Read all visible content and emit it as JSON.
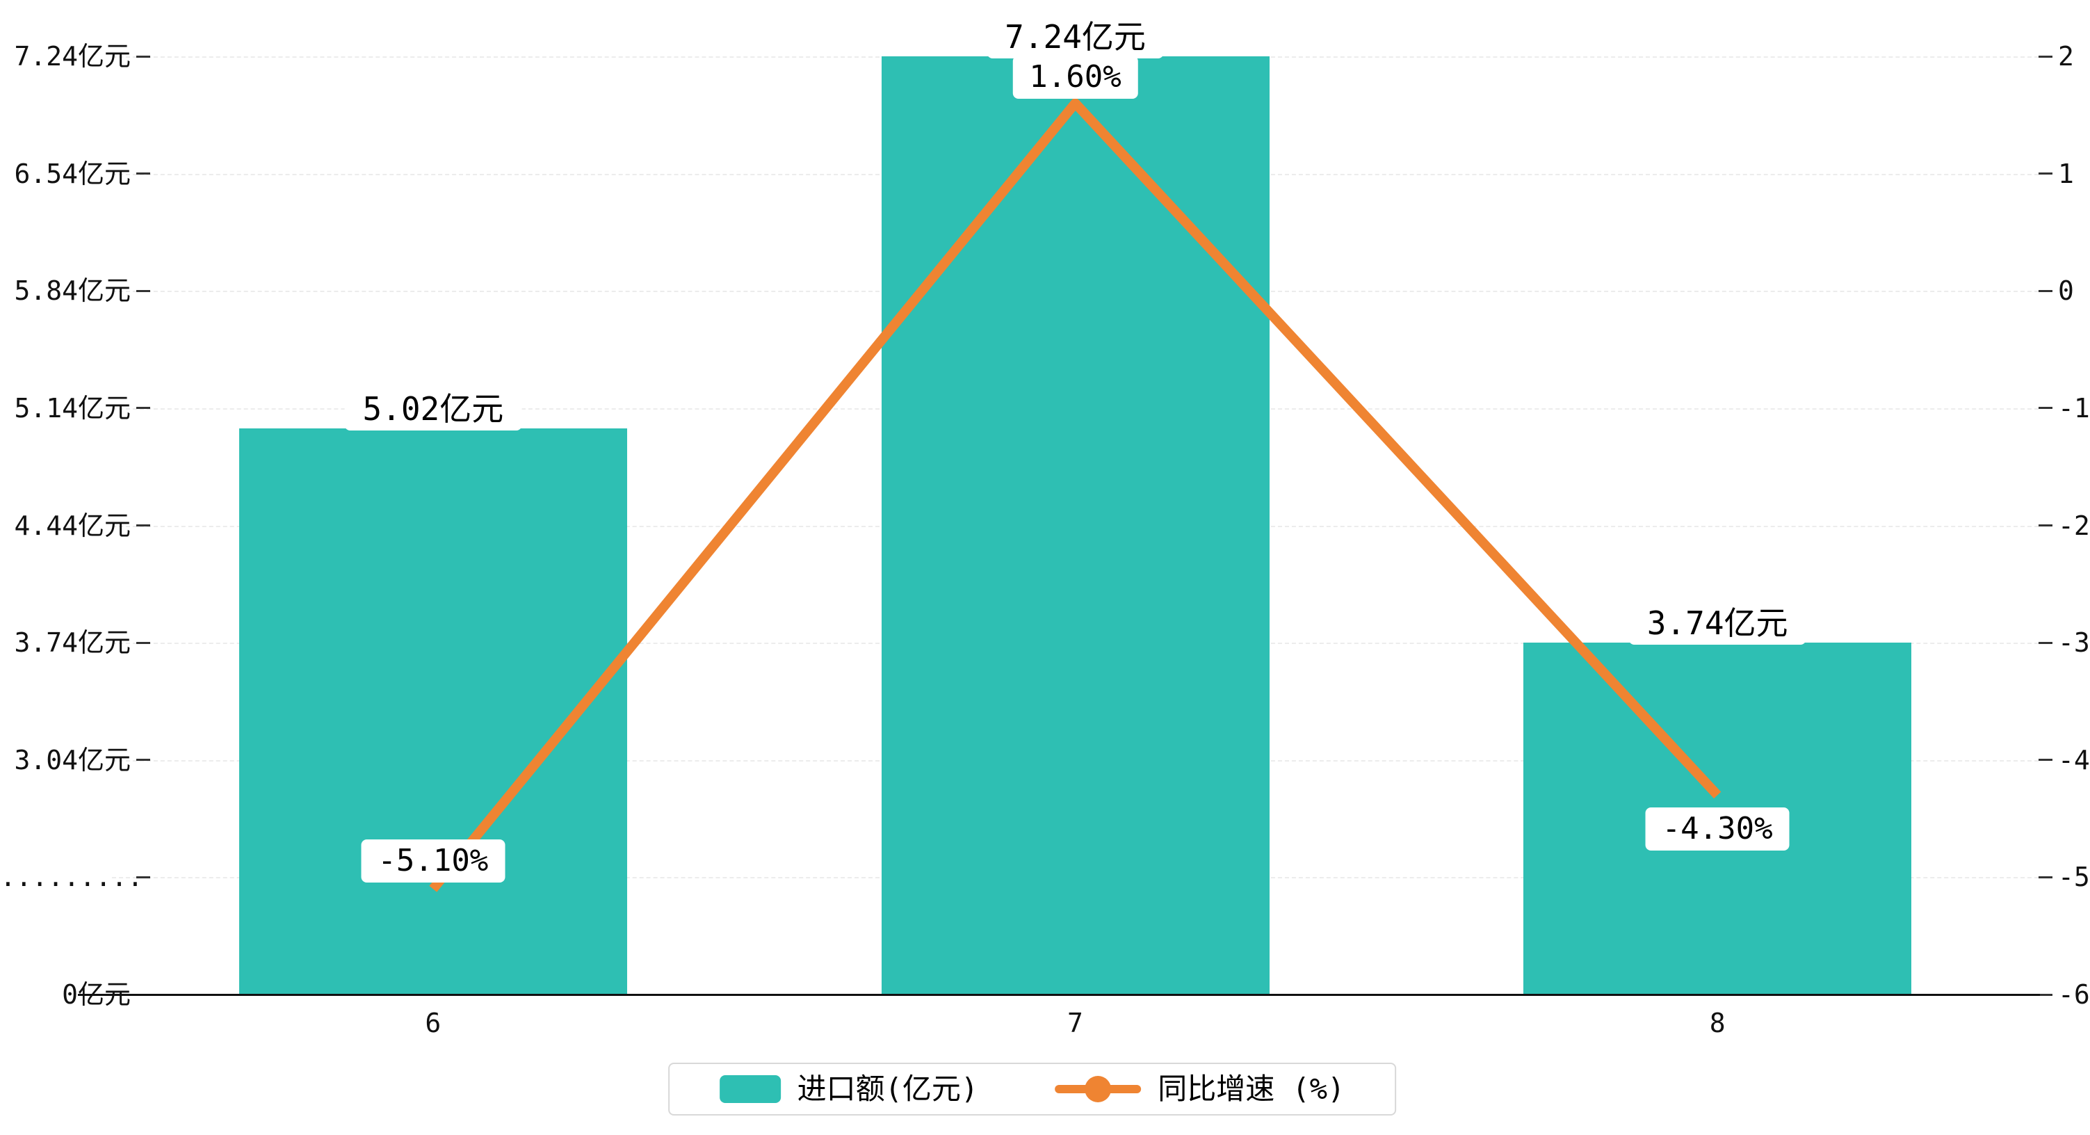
{
  "chart_data": {
    "type": "bar+line",
    "categories": [
      "6",
      "7",
      "8"
    ],
    "series": [
      {
        "name": "进口额(亿元)",
        "type": "bar",
        "axis": "left",
        "color": "#2EBFB3",
        "values": [
          5.02,
          7.24,
          3.74
        ],
        "value_labels": [
          "5.02亿元",
          "7.24亿元",
          "3.74亿元"
        ]
      },
      {
        "name": "同比增速 (%)",
        "type": "line",
        "axis": "right",
        "color": "#EF8432",
        "values": [
          -5.1,
          1.6,
          -4.3
        ],
        "value_labels": [
          "-5.10%",
          "1.60%",
          "-4.30%"
        ]
      }
    ],
    "left_axis": {
      "tick_labels": [
        "0亿元",
        ".........",
        "3.04亿元",
        "3.74亿元",
        "4.44亿元",
        "5.14亿元",
        "5.84亿元",
        "6.54亿元",
        "7.24亿元"
      ],
      "tick_values": [
        0,
        null,
        3.04,
        3.74,
        4.44,
        5.14,
        5.84,
        6.54,
        7.24
      ]
    },
    "right_axis": {
      "tick_labels": [
        "-6",
        "-5",
        "-4",
        "-3",
        "-2",
        "-1",
        "0",
        "1",
        "2"
      ],
      "min": -6,
      "max": 2
    },
    "legend": {
      "position": "bottom",
      "items": [
        "进口额(亿元)",
        "同比增速 (%)"
      ]
    },
    "grid": "dashed-horizontal",
    "background": "#ffffff"
  }
}
